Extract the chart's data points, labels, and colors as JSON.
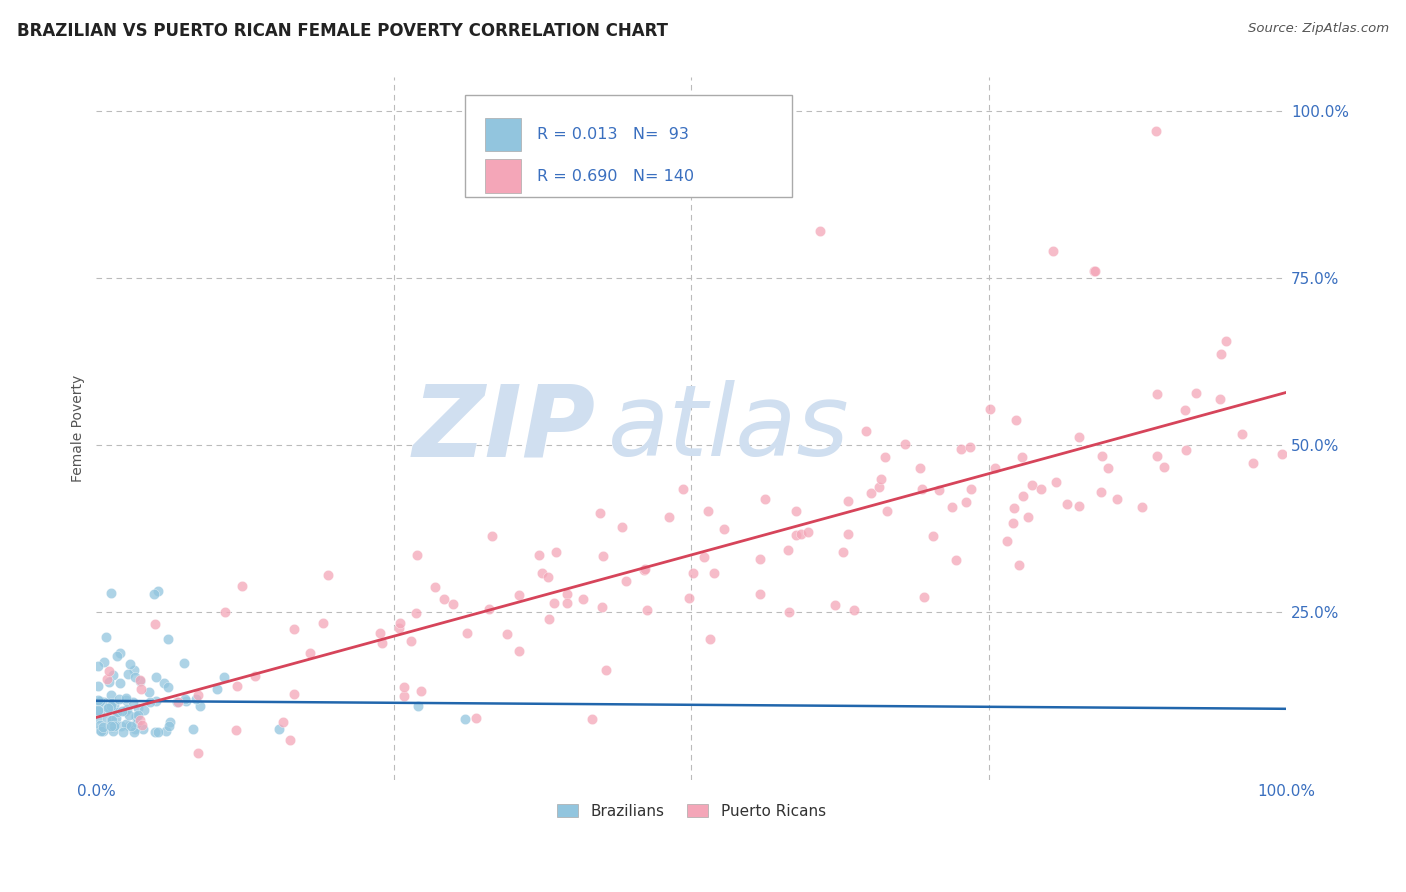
{
  "title": "BRAZILIAN VS PUERTO RICAN FEMALE POVERTY CORRELATION CHART",
  "source": "Source: ZipAtlas.com",
  "ylabel": "Female Poverty",
  "legend_label1": "Brazilians",
  "legend_label2": "Puerto Ricans",
  "R1": "0.013",
  "N1": " 93",
  "R2": "0.690",
  "N2": "140",
  "color_blue": "#92C5DE",
  "color_pink": "#F4A6B8",
  "color_blue_line": "#2166AC",
  "color_pink_line": "#D6445A",
  "color_blue_text": "#3A6FBF",
  "color_label": "#555555",
  "watermark_color": "#D0DFF0",
  "background": "#ffffff",
  "grid_color": "#BBBBBB",
  "figsize": [
    14.06,
    8.92
  ],
  "dpi": 100,
  "braz_seed": 10,
  "puerto_seed": 20
}
